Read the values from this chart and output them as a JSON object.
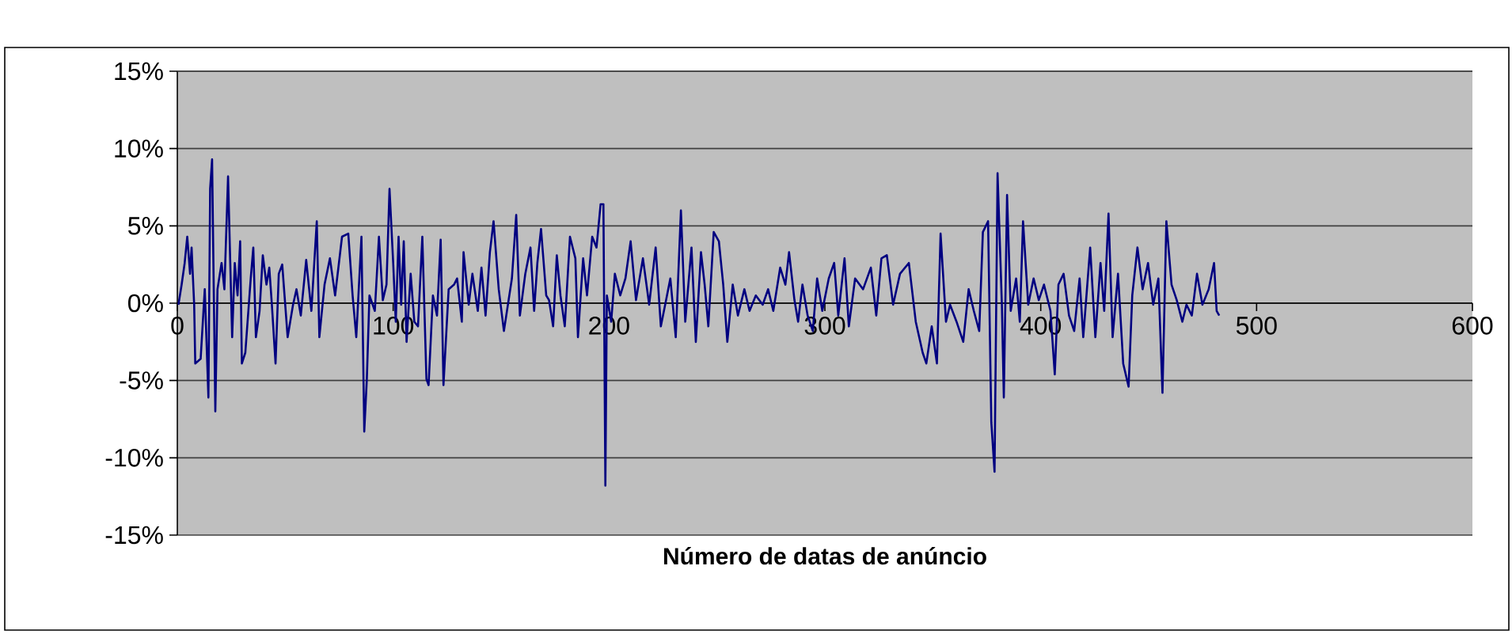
{
  "chart_data": {
    "type": "line",
    "xlabel": "Número de datas de anúncio",
    "color": "#000080",
    "grid": "y",
    "xlim": [
      0,
      600
    ],
    "ylim": [
      -15,
      15
    ],
    "xticks": [
      0,
      100,
      200,
      300,
      400,
      500,
      600
    ],
    "yticks": [
      {
        "value": -15,
        "label": "-15%"
      },
      {
        "value": -10,
        "label": "-10%"
      },
      {
        "value": -5,
        "label": "-5%"
      },
      {
        "value": 0,
        "label": "0%"
      },
      {
        "value": 5,
        "label": "5%"
      },
      {
        "value": 10,
        "label": "10%"
      },
      {
        "value": 15,
        "label": "15%"
      }
    ],
    "x": [
      0.5,
      2,
      3.4,
      4.6,
      5.9,
      6.6,
      7.8,
      8.3,
      10.8,
      12.7,
      14.4,
      15.2,
      16.1,
      17.6,
      18.6,
      20.5,
      21.8,
      23.5,
      25.4,
      26.6,
      27.9,
      29.1,
      29.9,
      31.5,
      34,
      35.2,
      36.4,
      38.1,
      39.6,
      41.3,
      42.6,
      43.8,
      45.5,
      47,
      48.6,
      51.1,
      53.6,
      55.2,
      57.2,
      59.7,
      62.1,
      64.6,
      65.8,
      68.2,
      70.7,
      73.1,
      76.3,
      79.2,
      81.2,
      82.9,
      85.3,
      86.6,
      87.8,
      89,
      91.5,
      93.4,
      95.2,
      96.9,
      98.3,
      100,
      101.2,
      102.5,
      103.7,
      104.9,
      106.2,
      108.1,
      109.8,
      111.5,
      113.5,
      115.4,
      116.4,
      118.4,
      120.3,
      122,
      123.3,
      125.7,
      128.2,
      129.6,
      131.8,
      132.6,
      135,
      136.7,
      139.2,
      140.9,
      142.8,
      144.8,
      146.5,
      148.9,
      151.3,
      155,
      157,
      158.7,
      161.2,
      163.6,
      165.3,
      166.8,
      168.5,
      170.9,
      172.2,
      174.1,
      175.8,
      177.5,
      179.5,
      181.9,
      184.4,
      185.6,
      188,
      189.8,
      192.2,
      194.2,
      196.1,
      197.4,
      198.3,
      199,
      201,
      202.7,
      205.2,
      207.6,
      210,
      212.5,
      215.7,
      218.6,
      221.6,
      224,
      226,
      228.4,
      230.9,
      233.3,
      235.3,
      238.2,
      240.2,
      242.6,
      244.3,
      246,
      248.5,
      250.9,
      252.9,
      254.8,
      257.3,
      259.7,
      262.7,
      265.1,
      268,
      271.2,
      273.7,
      276.1,
      279.3,
      281.7,
      283.4,
      285.9,
      287.6,
      289.6,
      292,
      294.4,
      296.4,
      298.8,
      301.8,
      304.3,
      306.2,
      309.1,
      311.1,
      314,
      317.7,
      321.3,
      323.8,
      326.2,
      328.7,
      331.6,
      334.8,
      338.9,
      342.1,
      345.3,
      347,
      349.5,
      351.9,
      353.6,
      356.1,
      358,
      361,
      364.1,
      366.6,
      369,
      371.5,
      373.2,
      375.6,
      377.1,
      378.6,
      380,
      382,
      382.9,
      384.4,
      386.1,
      388.6,
      390.3,
      391.8,
      394.2,
      396.7,
      399.1,
      401.5,
      404.5,
      406.5,
      408.2,
      410.6,
      413.1,
      415.5,
      418,
      419.7,
      422.9,
      425.3,
      427.7,
      429.4,
      431.4,
      433.3,
      435.8,
      438.2,
      440.7,
      442.4,
      444.8,
      447.2,
      449.7,
      452.1,
      454.5,
      456.4,
      458.2,
      460.6,
      463,
      465.6,
      467.5,
      470,
      472.4,
      474.9,
      477.8,
      480.3,
      481.5,
      482.7
    ],
    "values": [
      -0.1,
      1.2,
      2.6,
      4.3,
      1.9,
      3.6,
      -0.1,
      -3.9,
      -3.6,
      0.9,
      -6.1,
      7.4,
      9.3,
      -7.0,
      0.9,
      2.6,
      0.9,
      8.2,
      -2.2,
      2.6,
      0.5,
      4.0,
      -3.9,
      -3.2,
      1.6,
      3.6,
      -2.2,
      -0.5,
      3.1,
      1.2,
      2.3,
      -0.1,
      -3.9,
      1.9,
      2.5,
      -2.2,
      -0.1,
      0.9,
      -0.8,
      2.8,
      -0.5,
      5.3,
      -2.2,
      1.2,
      2.9,
      0.5,
      4.3,
      4.5,
      0.5,
      -2.2,
      4.3,
      -8.3,
      -4.9,
      0.5,
      -0.5,
      4.3,
      0.2,
      1.2,
      7.4,
      2.6,
      -1.2,
      4.3,
      -0.1,
      4.0,
      -2.5,
      1.9,
      -1.2,
      -1.5,
      4.3,
      -4.9,
      -5.3,
      0.5,
      -0.8,
      4.1,
      -5.3,
      0.9,
      1.2,
      1.6,
      -1.2,
      3.3,
      -0.1,
      1.9,
      -0.5,
      2.3,
      -0.8,
      3.3,
      5.3,
      0.9,
      -1.8,
      1.6,
      5.7,
      -0.8,
      1.9,
      3.6,
      -0.5,
      2.6,
      4.8,
      0.5,
      0.2,
      -1.5,
      3.1,
      0.5,
      -1.5,
      4.3,
      2.9,
      -2.2,
      2.9,
      0.5,
      4.3,
      3.6,
      6.4,
      6.4,
      -11.8,
      0.5,
      -1.2,
      1.9,
      0.5,
      1.6,
      4.0,
      0.2,
      2.9,
      -0.1,
      3.6,
      -1.5,
      -0.1,
      1.6,
      -2.2,
      6.0,
      -1.2,
      3.6,
      -2.5,
      3.3,
      1.2,
      -1.5,
      4.6,
      4.0,
      1.2,
      -2.5,
      1.2,
      -0.8,
      0.9,
      -0.5,
      0.5,
      -0.1,
      0.9,
      -0.5,
      2.3,
      1.2,
      3.3,
      0.2,
      -1.2,
      1.2,
      -0.8,
      -1.8,
      1.6,
      -0.5,
      1.6,
      2.6,
      -0.8,
      2.9,
      -1.5,
      1.6,
      0.9,
      2.3,
      -0.8,
      2.9,
      3.1,
      -0.1,
      1.9,
      2.6,
      -1.2,
      -3.2,
      -3.9,
      -1.5,
      -3.9,
      4.5,
      -1.2,
      -0.1,
      -1.2,
      -2.5,
      0.9,
      -0.5,
      -1.8,
      4.6,
      5.3,
      -7.7,
      -10.9,
      8.4,
      -0.1,
      -6.1,
      7.0,
      -0.5,
      1.6,
      -1.2,
      5.3,
      -0.1,
      1.6,
      0.2,
      1.2,
      -0.5,
      -4.6,
      1.2,
      1.9,
      -0.8,
      -1.8,
      1.6,
      -2.2,
      3.6,
      -2.2,
      2.6,
      -0.5,
      5.8,
      -2.2,
      1.9,
      -3.9,
      -5.4,
      0.5,
      3.6,
      0.9,
      2.6,
      -0.1,
      1.6,
      -5.8,
      5.3,
      1.2,
      0.2,
      -1.2,
      -0.1,
      -0.8,
      1.9,
      -0.1,
      0.9,
      2.6,
      -0.5,
      -0.8
    ]
  }
}
